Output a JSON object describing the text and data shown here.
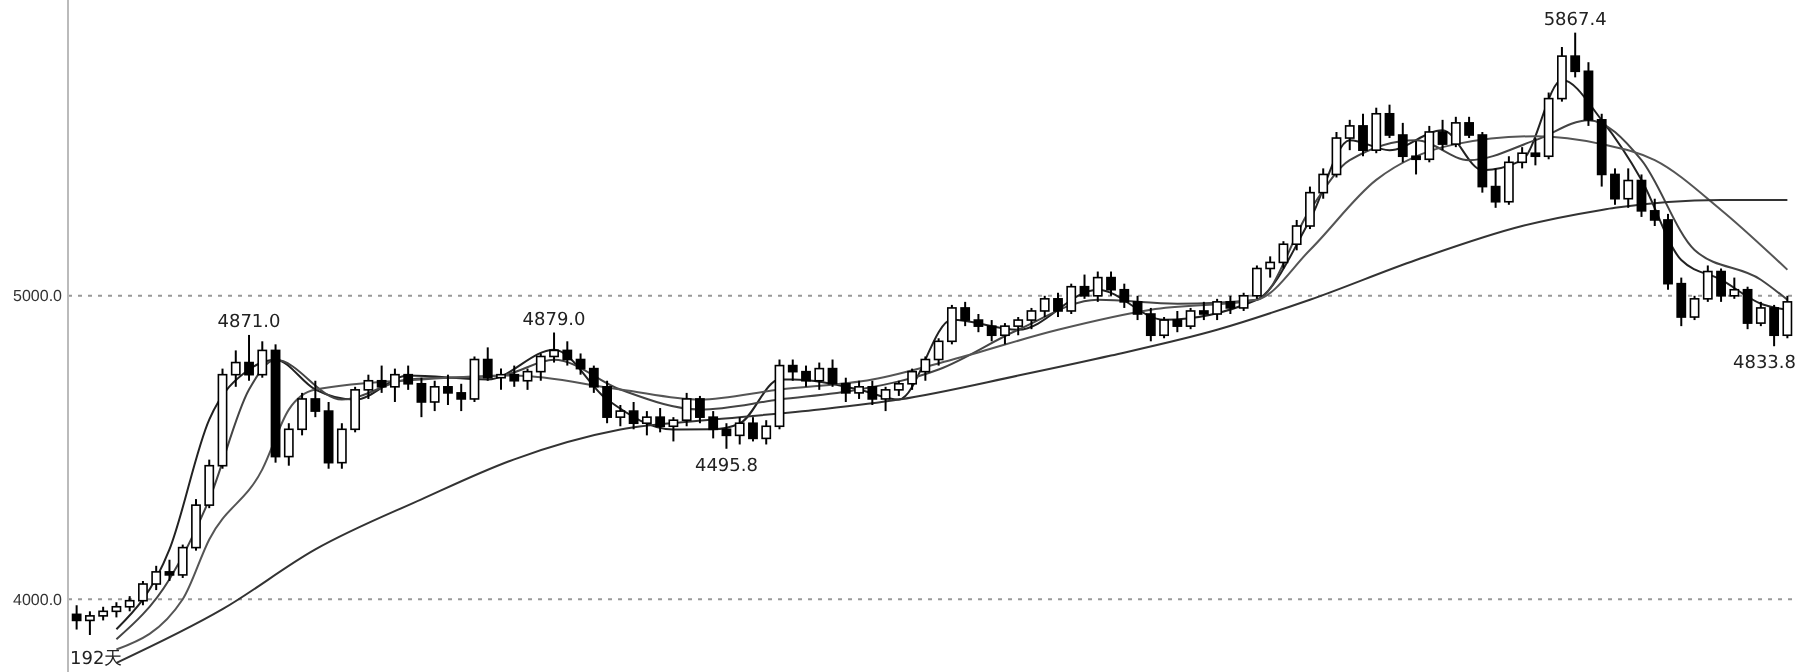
{
  "chart_data": {
    "type": "candlestick",
    "categories": [
      null,
      null,
      null,
      null,
      null,
      null,
      null,
      null,
      null,
      null,
      null,
      null,
      null,
      null,
      null,
      null,
      null,
      null,
      null,
      null,
      null,
      null,
      null,
      null,
      null,
      null,
      null,
      null,
      null,
      null,
      null,
      null,
      null,
      null,
      null,
      null,
      null,
      null,
      null,
      null,
      null,
      null,
      null,
      null,
      null,
      null,
      null,
      null,
      null,
      null,
      null,
      null,
      null,
      null,
      null,
      null,
      null,
      null,
      null,
      null,
      null,
      null,
      null,
      null,
      null,
      null,
      null,
      null,
      null,
      null,
      null,
      null,
      null,
      null,
      null,
      null,
      null,
      null,
      null,
      null,
      null,
      null,
      null,
      null,
      null,
      null,
      null,
      null,
      null,
      null,
      null,
      null,
      null,
      null,
      null,
      null,
      null,
      null,
      null,
      null,
      null,
      null,
      null,
      null,
      null,
      null,
      null,
      null,
      null,
      null,
      null,
      null,
      null,
      null,
      null,
      null,
      null,
      null,
      null,
      null,
      null,
      null,
      null,
      null,
      null,
      null,
      null,
      null,
      null,
      null
    ],
    "ohlc": [
      [
        3950,
        3980,
        3900,
        3930
      ],
      [
        3930,
        3960,
        3882,
        3945
      ],
      [
        3945,
        3975,
        3930,
        3960
      ],
      [
        3960,
        3990,
        3940,
        3975
      ],
      [
        3975,
        4010,
        3960,
        3995
      ],
      [
        3995,
        4060,
        3980,
        4050
      ],
      [
        4050,
        4110,
        4030,
        4090
      ],
      [
        4090,
        4130,
        4060,
        4080
      ],
      [
        4080,
        4180,
        4070,
        4170
      ],
      [
        4170,
        4330,
        4160,
        4310
      ],
      [
        4310,
        4460,
        4300,
        4440
      ],
      [
        4440,
        4760,
        4430,
        4740
      ],
      [
        4740,
        4820,
        4700,
        4780
      ],
      [
        4780,
        4871,
        4720,
        4740
      ],
      [
        4740,
        4850,
        4730,
        4820
      ],
      [
        4820,
        4840,
        4450,
        4470
      ],
      [
        4470,
        4580,
        4440,
        4560
      ],
      [
        4560,
        4680,
        4540,
        4660
      ],
      [
        4660,
        4720,
        4600,
        4620
      ],
      [
        4620,
        4650,
        4430,
        4450
      ],
      [
        4450,
        4580,
        4430,
        4560
      ],
      [
        4560,
        4700,
        4550,
        4690
      ],
      [
        4690,
        4740,
        4660,
        4720
      ],
      [
        4720,
        4770,
        4680,
        4700
      ],
      [
        4700,
        4760,
        4650,
        4740
      ],
      [
        4740,
        4770,
        4690,
        4710
      ],
      [
        4710,
        4730,
        4600,
        4650
      ],
      [
        4650,
        4720,
        4620,
        4700
      ],
      [
        4700,
        4740,
        4640,
        4680
      ],
      [
        4680,
        4710,
        4620,
        4660
      ],
      [
        4660,
        4800,
        4650,
        4790
      ],
      [
        4790,
        4830,
        4720,
        4730
      ],
      [
        4730,
        4760,
        4690,
        4740
      ],
      [
        4740,
        4770,
        4700,
        4720
      ],
      [
        4720,
        4760,
        4690,
        4750
      ],
      [
        4750,
        4810,
        4720,
        4800
      ],
      [
        4800,
        4879,
        4780,
        4820
      ],
      [
        4820,
        4850,
        4770,
        4790
      ],
      [
        4790,
        4810,
        4740,
        4760
      ],
      [
        4760,
        4770,
        4680,
        4700
      ],
      [
        4700,
        4720,
        4580,
        4600
      ],
      [
        4600,
        4640,
        4570,
        4620
      ],
      [
        4620,
        4650,
        4560,
        4580
      ],
      [
        4580,
        4620,
        4540,
        4600
      ],
      [
        4600,
        4630,
        4550,
        4570
      ],
      [
        4570,
        4600,
        4520,
        4590
      ],
      [
        4590,
        4680,
        4570,
        4660
      ],
      [
        4660,
        4670,
        4580,
        4600
      ],
      [
        4600,
        4620,
        4530,
        4560
      ],
      [
        4560,
        4580,
        4495.8,
        4540
      ],
      [
        4540,
        4600,
        4510,
        4580
      ],
      [
        4580,
        4600,
        4520,
        4530
      ],
      [
        4530,
        4590,
        4510,
        4570
      ],
      [
        4570,
        4790,
        4560,
        4770
      ],
      [
        4770,
        4790,
        4720,
        4750
      ],
      [
        4750,
        4770,
        4700,
        4720
      ],
      [
        4720,
        4780,
        4690,
        4760
      ],
      [
        4760,
        4790,
        4700,
        4710
      ],
      [
        4710,
        4730,
        4650,
        4680
      ],
      [
        4680,
        4720,
        4660,
        4700
      ],
      [
        4700,
        4720,
        4640,
        4660
      ],
      [
        4660,
        4700,
        4620,
        4690
      ],
      [
        4690,
        4720,
        4670,
        4710
      ],
      [
        4710,
        4760,
        4690,
        4750
      ],
      [
        4750,
        4800,
        4720,
        4790
      ],
      [
        4790,
        4860,
        4770,
        4850
      ],
      [
        4850,
        4970,
        4840,
        4960
      ],
      [
        4960,
        4980,
        4900,
        4920
      ],
      [
        4920,
        4940,
        4880,
        4900
      ],
      [
        4900,
        4920,
        4850,
        4870
      ],
      [
        4870,
        4910,
        4840,
        4900
      ],
      [
        4900,
        4930,
        4870,
        4920
      ],
      [
        4920,
        4960,
        4890,
        4950
      ],
      [
        4950,
        5000,
        4930,
        4990
      ],
      [
        4990,
        5010,
        4930,
        4950
      ],
      [
        4950,
        5040,
        4940,
        5030
      ],
      [
        5030,
        5070,
        4990,
        5000
      ],
      [
        5000,
        5080,
        4980,
        5060
      ],
      [
        5060,
        5080,
        5000,
        5020
      ],
      [
        5020,
        5040,
        4960,
        4980
      ],
      [
        4980,
        5000,
        4920,
        4940
      ],
      [
        4940,
        4960,
        4850,
        4870
      ],
      [
        4870,
        4930,
        4860,
        4920
      ],
      [
        4920,
        4950,
        4880,
        4900
      ],
      [
        4900,
        4960,
        4890,
        4950
      ],
      [
        4950,
        4980,
        4920,
        4940
      ],
      [
        4940,
        4990,
        4920,
        4980
      ],
      [
        4980,
        5000,
        4940,
        4960
      ],
      [
        4960,
        5010,
        4950,
        5000
      ],
      [
        5000,
        5100,
        4990,
        5090
      ],
      [
        5090,
        5130,
        5060,
        5110
      ],
      [
        5110,
        5180,
        5090,
        5170
      ],
      [
        5170,
        5250,
        5150,
        5230
      ],
      [
        5230,
        5360,
        5220,
        5340
      ],
      [
        5340,
        5420,
        5320,
        5400
      ],
      [
        5400,
        5540,
        5390,
        5520
      ],
      [
        5520,
        5580,
        5480,
        5560
      ],
      [
        5560,
        5600,
        5460,
        5480
      ],
      [
        5480,
        5620,
        5470,
        5600
      ],
      [
        5600,
        5630,
        5520,
        5530
      ],
      [
        5530,
        5570,
        5440,
        5460
      ],
      [
        5460,
        5510,
        5400,
        5450
      ],
      [
        5450,
        5560,
        5440,
        5540
      ],
      [
        5540,
        5580,
        5480,
        5500
      ],
      [
        5500,
        5590,
        5490,
        5570
      ],
      [
        5570,
        5590,
        5520,
        5530
      ],
      [
        5530,
        5540,
        5340,
        5360
      ],
      [
        5360,
        5420,
        5290,
        5310
      ],
      [
        5310,
        5460,
        5300,
        5440
      ],
      [
        5440,
        5490,
        5420,
        5470
      ],
      [
        5470,
        5520,
        5430,
        5460
      ],
      [
        5460,
        5670,
        5450,
        5650
      ],
      [
        5650,
        5820,
        5640,
        5790
      ],
      [
        5790,
        5867.4,
        5720,
        5740
      ],
      [
        5740,
        5770,
        5560,
        5580
      ],
      [
        5580,
        5600,
        5360,
        5400
      ],
      [
        5400,
        5420,
        5300,
        5320
      ],
      [
        5320,
        5420,
        5290,
        5380
      ],
      [
        5380,
        5400,
        5260,
        5280
      ],
      [
        5280,
        5320,
        5230,
        5250
      ],
      [
        5250,
        5270,
        5020,
        5040
      ],
      [
        5040,
        5060,
        4900,
        4930
      ],
      [
        4930,
        5000,
        4920,
        4990
      ],
      [
        4990,
        5100,
        4980,
        5080
      ],
      [
        5080,
        5090,
        4980,
        5000
      ],
      [
        5000,
        5060,
        4990,
        5020
      ],
      [
        5020,
        5030,
        4890,
        4910
      ],
      [
        4910,
        4980,
        4900,
        4960
      ],
      [
        4960,
        4970,
        4833.8,
        4870
      ],
      [
        4870,
        5000,
        4860,
        4980
      ]
    ],
    "series": [
      {
        "type": "line",
        "color": "#222222",
        "values": [
          null,
          null,
          null,
          3901,
          null,
          null,
          null,
          4164,
          null,
          null,
          4592,
          null,
          null,
          4757,
          null,
          4789,
          null,
          null,
          4691,
          null,
          null,
          4658,
          null,
          null,
          null,
          4737,
          null,
          null,
          null,
          null,
          null,
          4724,
          null,
          null,
          null,
          null,
          4822,
          null,
          null,
          null,
          4658,
          null,
          null,
          null,
          null,
          4559,
          null,
          null,
          4560,
          null,
          4579,
          null,
          null,
          4724,
          4724,
          null,
          null,
          null,
          null,
          4691,
          null,
          null,
          4658,
          null,
          null,
          null,
          4921,
          null,
          null,
          null,
          null,
          4888,
          null,
          null,
          null,
          null,
          null,
          5020,
          null,
          null,
          null,
          null,
          4921,
          null,
          null,
          null,
          null,
          null,
          null,
          4987,
          null,
          null,
          null,
          5250,
          null,
          null,
          5513,
          null,
          null,
          5480,
          null,
          null,
          null,
          5546,
          null,
          null,
          5414,
          null,
          null,
          5447,
          null,
          null,
          5711,
          null,
          null,
          5579,
          null,
          null,
          5382,
          null,
          null,
          5118,
          null,
          null,
          5053,
          null,
          null,
          4974,
          null,
          4954
        ]
      },
      {
        "type": "line",
        "color": "#444444",
        "values": [
          null,
          null,
          null,
          3868,
          null,
          null,
          null,
          4066,
          null,
          null,
          4329,
          null,
          null,
          4691,
          null,
          4789,
          null,
          null,
          null,
          null,
          4658,
          null,
          null,
          null,
          null,
          4724,
          null,
          null,
          null,
          null,
          null,
          null,
          4737,
          null,
          null,
          null,
          4789,
          null,
          null,
          null,
          null,
          4691,
          null,
          null,
          null,
          null,
          null,
          4625,
          null,
          null,
          null,
          null,
          null,
          4658,
          null,
          null,
          null,
          null,
          null,
          4691,
          null,
          null,
          null,
          null,
          null,
          4757,
          null,
          null,
          null,
          null,
          null,
          4888,
          null,
          null,
          null,
          null,
          null,
          4987,
          null,
          null,
          null,
          null,
          null,
          4974,
          null,
          null,
          null,
          null,
          null,
          4987,
          null,
          null,
          null,
          5283,
          null,
          null,
          5447,
          null,
          null,
          null,
          null,
          5513,
          null,
          null,
          null,
          5447,
          null,
          null,
          null,
          null,
          5513,
          null,
          null,
          null,
          5579,
          null,
          null,
          null,
          5447,
          null,
          null,
          null,
          5151,
          null,
          null,
          null,
          null,
          5053,
          null,
          4987
        ]
      },
      {
        "type": "line",
        "color": "#555555",
        "values": [
          null,
          null,
          null,
          3834,
          null,
          null,
          null,
          null,
          4000,
          null,
          4197,
          null,
          null,
          null,
          4428,
          null,
          4625,
          null,
          4691,
          null,
          null,
          null,
          null,
          null,
          null,
          null,
          4724,
          null,
          null,
          null,
          null,
          null,
          null,
          4737,
          null,
          null,
          null,
          null,
          null,
          null,
          null,
          4691,
          null,
          null,
          null,
          null,
          null,
          4658,
          null,
          null,
          null,
          null,
          null,
          4691,
          null,
          null,
          null,
          null,
          null,
          null,
          4724,
          null,
          null,
          null,
          null,
          null,
          4789,
          null,
          null,
          null,
          null,
          null,
          null,
          null,
          4888,
          null,
          null,
          null,
          null,
          null,
          null,
          4954,
          null,
          null,
          null,
          null,
          null,
          null,
          null,
          4987,
          null,
          null,
          null,
          5151,
          null,
          null,
          null,
          null,
          5382,
          null,
          null,
          null,
          null,
          null,
          5500,
          null,
          null,
          null,
          null,
          null,
          5526,
          null,
          null,
          null,
          null,
          5500,
          null,
          null,
          null,
          5447,
          null,
          null,
          null,
          null,
          5283,
          null,
          null,
          null,
          null,
          5086
        ]
      },
      {
        "type": "line",
        "color": "#333333",
        "values": [
          null,
          null,
          null,
          3790,
          null,
          null,
          null,
          null,
          null,
          null,
          null,
          3967,
          null,
          null,
          null,
          null,
          null,
          null,
          4164,
          null,
          null,
          null,
          null,
          null,
          null,
          null,
          4329,
          null,
          null,
          null,
          null,
          null,
          null,
          4461,
          null,
          null,
          null,
          null,
          null,
          null,
          null,
          4559,
          null,
          null,
          null,
          null,
          null,
          null,
          4592,
          null,
          null,
          null,
          null,
          null,
          null,
          null,
          4625,
          null,
          null,
          null,
          null,
          null,
          4658,
          null,
          null,
          null,
          null,
          null,
          null,
          null,
          null,
          4737,
          null,
          null,
          null,
          null,
          null,
          null,
          4803,
          null,
          null,
          null,
          null,
          null,
          null,
          null,
          4888,
          null,
          null,
          null,
          null,
          null,
          null,
          4987,
          null,
          null,
          null,
          null,
          null,
          null,
          null,
          5118,
          null,
          null,
          null,
          null,
          null,
          null,
          null,
          5230,
          null,
          null,
          null,
          null,
          null,
          5283,
          5290,
          null,
          null,
          null,
          null,
          null,
          null,
          null,
          5316,
          null,
          null,
          null,
          null,
          5316
        ]
      }
    ],
    "ylim": [
      3760,
      5975
    ],
    "yticks": [
      {
        "value": 4000,
        "label": "4000.0"
      },
      {
        "value": 5000,
        "label": "5000.0"
      }
    ],
    "grid": "y",
    "annotations": [
      {
        "text": "4871.0",
        "y": 4871
      },
      {
        "text": "4879.0",
        "y": 4879
      },
      {
        "text": "4495.8",
        "y": 4495.8
      },
      {
        "text": "5867.4",
        "y": 5867.4
      },
      {
        "text": "4833.8",
        "y": 4833.8
      },
      "192天"
    ]
  }
}
